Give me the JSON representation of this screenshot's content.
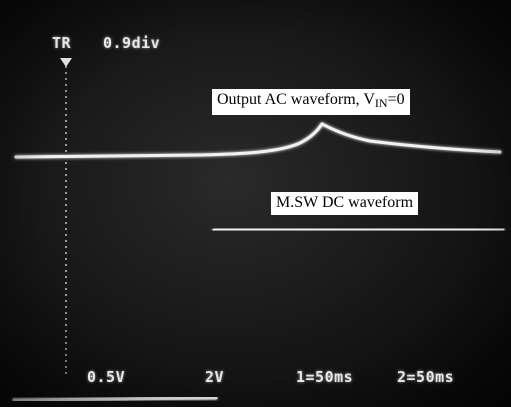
{
  "osd": {
    "trigger_label": "TR",
    "trigger_position": "0.9div",
    "ch1_scale": "0.5V",
    "ch2_scale": "2V",
    "ch1_time": "1=50ms",
    "ch2_time": "2=50ms"
  },
  "annotations": {
    "output_ac_prefix": "Output AC waveform, V",
    "output_ac_subscript": "IN",
    "output_ac_suffix": "=0",
    "msw_dc": "M.SW DC waveform"
  },
  "colors": {
    "screen_background": "#161616",
    "trace": "#f2f2f2",
    "text": "#e8e8e8",
    "label_background": "#ffffff"
  }
}
